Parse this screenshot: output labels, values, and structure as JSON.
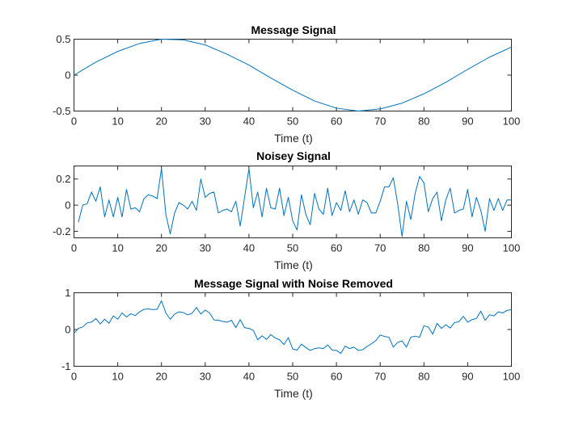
{
  "figure": {
    "background": "#ffffff",
    "line_color": "#0072bd"
  },
  "chart_data": [
    {
      "type": "line",
      "title": "Message Signal",
      "xlabel": "Time (t)",
      "ylabel": "",
      "xlim": [
        0,
        100
      ],
      "ylim": [
        -0.5,
        0.5
      ],
      "xticks": [
        0,
        10,
        20,
        30,
        40,
        50,
        60,
        70,
        80,
        90,
        100
      ],
      "yticks": [
        0.5,
        0,
        -0.5
      ],
      "ytick_labels": [
        "0.5",
        "0",
        "-0.5"
      ],
      "grid": false,
      "series": [
        {
          "x": [
            0,
            5,
            10,
            15,
            20,
            25,
            30,
            35,
            40,
            45,
            50,
            55,
            60,
            65,
            70,
            75,
            80,
            85,
            90,
            95,
            100
          ],
          "y": [
            0.0,
            0.18,
            0.33,
            0.44,
            0.5,
            0.49,
            0.42,
            0.29,
            0.14,
            -0.04,
            -0.21,
            -0.36,
            -0.46,
            -0.5,
            -0.47,
            -0.39,
            -0.26,
            -0.1,
            0.08,
            0.25,
            0.39
          ]
        }
      ]
    },
    {
      "type": "line",
      "title": "Noisey Signal",
      "xlabel": "Time (t)",
      "ylabel": "",
      "xlim": [
        0,
        100
      ],
      "ylim": [
        -0.25,
        0.3
      ],
      "xticks": [
        0,
        10,
        20,
        30,
        40,
        50,
        60,
        70,
        80,
        90,
        100
      ],
      "yticks": [
        0.2,
        0,
        -0.2
      ],
      "ytick_labels": [
        "0.2",
        "0",
        "-0.2"
      ],
      "grid": false,
      "series": [
        {
          "x": [
            1,
            2,
            3,
            4,
            5,
            6,
            7,
            8,
            9,
            10,
            11,
            12,
            13,
            14,
            15,
            16,
            17,
            18,
            19,
            20,
            21,
            22,
            23,
            24,
            25,
            26,
            27,
            28,
            29,
            30,
            31,
            32,
            33,
            34,
            35,
            36,
            37,
            38,
            39,
            40,
            41,
            42,
            43,
            44,
            45,
            46,
            47,
            48,
            49,
            50,
            51,
            52,
            53,
            54,
            55,
            56,
            57,
            58,
            59,
            60,
            61,
            62,
            63,
            64,
            65,
            66,
            67,
            68,
            69,
            70,
            71,
            72,
            73,
            74,
            75,
            76,
            77,
            78,
            79,
            80,
            81,
            82,
            83,
            84,
            85,
            86,
            87,
            88,
            89,
            90,
            91,
            92,
            93,
            94,
            95,
            96,
            97,
            98,
            99,
            100
          ],
          "y": [
            -0.13,
            0.0,
            0.01,
            0.1,
            0.03,
            0.14,
            -0.09,
            0.04,
            -0.09,
            0.06,
            -0.09,
            0.12,
            -0.03,
            -0.02,
            -0.05,
            0.05,
            0.08,
            0.07,
            0.05,
            0.28,
            -0.07,
            -0.22,
            -0.06,
            0.02,
            0.0,
            -0.03,
            0.03,
            -0.04,
            0.2,
            0.06,
            0.09,
            0.1,
            -0.06,
            -0.04,
            -0.03,
            -0.05,
            0.03,
            -0.16,
            0.06,
            0.28,
            -0.02,
            0.1,
            -0.09,
            0.13,
            -0.02,
            -0.03,
            0.13,
            -0.08,
            0.06,
            -0.12,
            -0.19,
            0.08,
            -0.07,
            -0.15,
            0.09,
            -0.03,
            -0.07,
            0.13,
            -0.08,
            0.02,
            -0.04,
            0.11,
            -0.05,
            0.04,
            -0.07,
            0.04,
            0.02,
            -0.06,
            -0.06,
            0.03,
            0.14,
            0.14,
            0.21,
            0.01,
            -0.24,
            0.03,
            -0.11,
            0.09,
            0.22,
            0.17,
            -0.05,
            0.05,
            0.1,
            -0.12,
            0.04,
            0.13,
            -0.06,
            -0.04,
            -0.03,
            0.12,
            -0.09,
            0.06,
            -0.04,
            -0.2,
            0.05,
            -0.04,
            0.05,
            -0.04,
            0.04,
            0.04
          ]
        }
      ]
    },
    {
      "type": "line",
      "title": "Message Signal with Noise Removed",
      "xlabel": "Time (t)",
      "ylabel": "",
      "xlim": [
        0,
        100
      ],
      "ylim": [
        -1,
        1
      ],
      "xticks": [
        0,
        10,
        20,
        30,
        40,
        50,
        60,
        70,
        80,
        90,
        100
      ],
      "yticks": [
        1,
        0,
        -1
      ],
      "ytick_labels": [
        "1",
        "0",
        "-1"
      ],
      "grid": false,
      "series": [
        {
          "x": [
            0,
            1,
            2,
            3,
            4,
            5,
            6,
            7,
            8,
            9,
            10,
            11,
            12,
            13,
            14,
            15,
            16,
            17,
            18,
            19,
            20,
            21,
            22,
            23,
            24,
            25,
            26,
            27,
            28,
            29,
            30,
            31,
            32,
            33,
            34,
            35,
            36,
            37,
            38,
            39,
            40,
            41,
            42,
            43,
            44,
            45,
            46,
            47,
            48,
            49,
            50,
            51,
            52,
            53,
            54,
            55,
            56,
            57,
            58,
            59,
            60,
            61,
            62,
            63,
            64,
            65,
            66,
            67,
            68,
            69,
            70,
            71,
            72,
            73,
            74,
            75,
            76,
            77,
            78,
            79,
            80,
            81,
            82,
            83,
            84,
            85,
            86,
            87,
            88,
            89,
            90,
            91,
            92,
            93,
            94,
            95,
            96,
            97,
            98,
            99,
            100
          ],
          "y": [
            -0.1,
            0.03,
            0.07,
            0.18,
            0.2,
            0.3,
            0.15,
            0.28,
            0.17,
            0.37,
            0.28,
            0.45,
            0.34,
            0.43,
            0.38,
            0.48,
            0.55,
            0.56,
            0.54,
            0.55,
            0.78,
            0.45,
            0.28,
            0.42,
            0.48,
            0.46,
            0.4,
            0.44,
            0.6,
            0.42,
            0.53,
            0.45,
            0.26,
            0.25,
            0.22,
            0.2,
            0.25,
            0.05,
            0.27,
            0.05,
            0.03,
            -0.02,
            -0.28,
            -0.17,
            -0.27,
            -0.14,
            -0.23,
            -0.28,
            -0.41,
            -0.22,
            -0.53,
            -0.56,
            -0.4,
            -0.49,
            -0.57,
            -0.52,
            -0.5,
            -0.52,
            -0.42,
            -0.56,
            -0.57,
            -0.65,
            -0.45,
            -0.52,
            -0.48,
            -0.57,
            -0.55,
            -0.46,
            -0.39,
            -0.3,
            -0.15,
            -0.19,
            -0.21,
            -0.48,
            -0.35,
            -0.31,
            -0.48,
            -0.21,
            -0.18,
            -0.21,
            0.1,
            0.07,
            -0.13,
            0.17,
            0.03,
            0.13,
            0.04,
            0.19,
            0.21,
            0.36,
            0.2,
            0.27,
            0.3,
            0.5,
            0.25,
            0.4,
            0.37,
            0.48,
            0.45,
            0.52,
            0.54
          ]
        }
      ]
    }
  ]
}
